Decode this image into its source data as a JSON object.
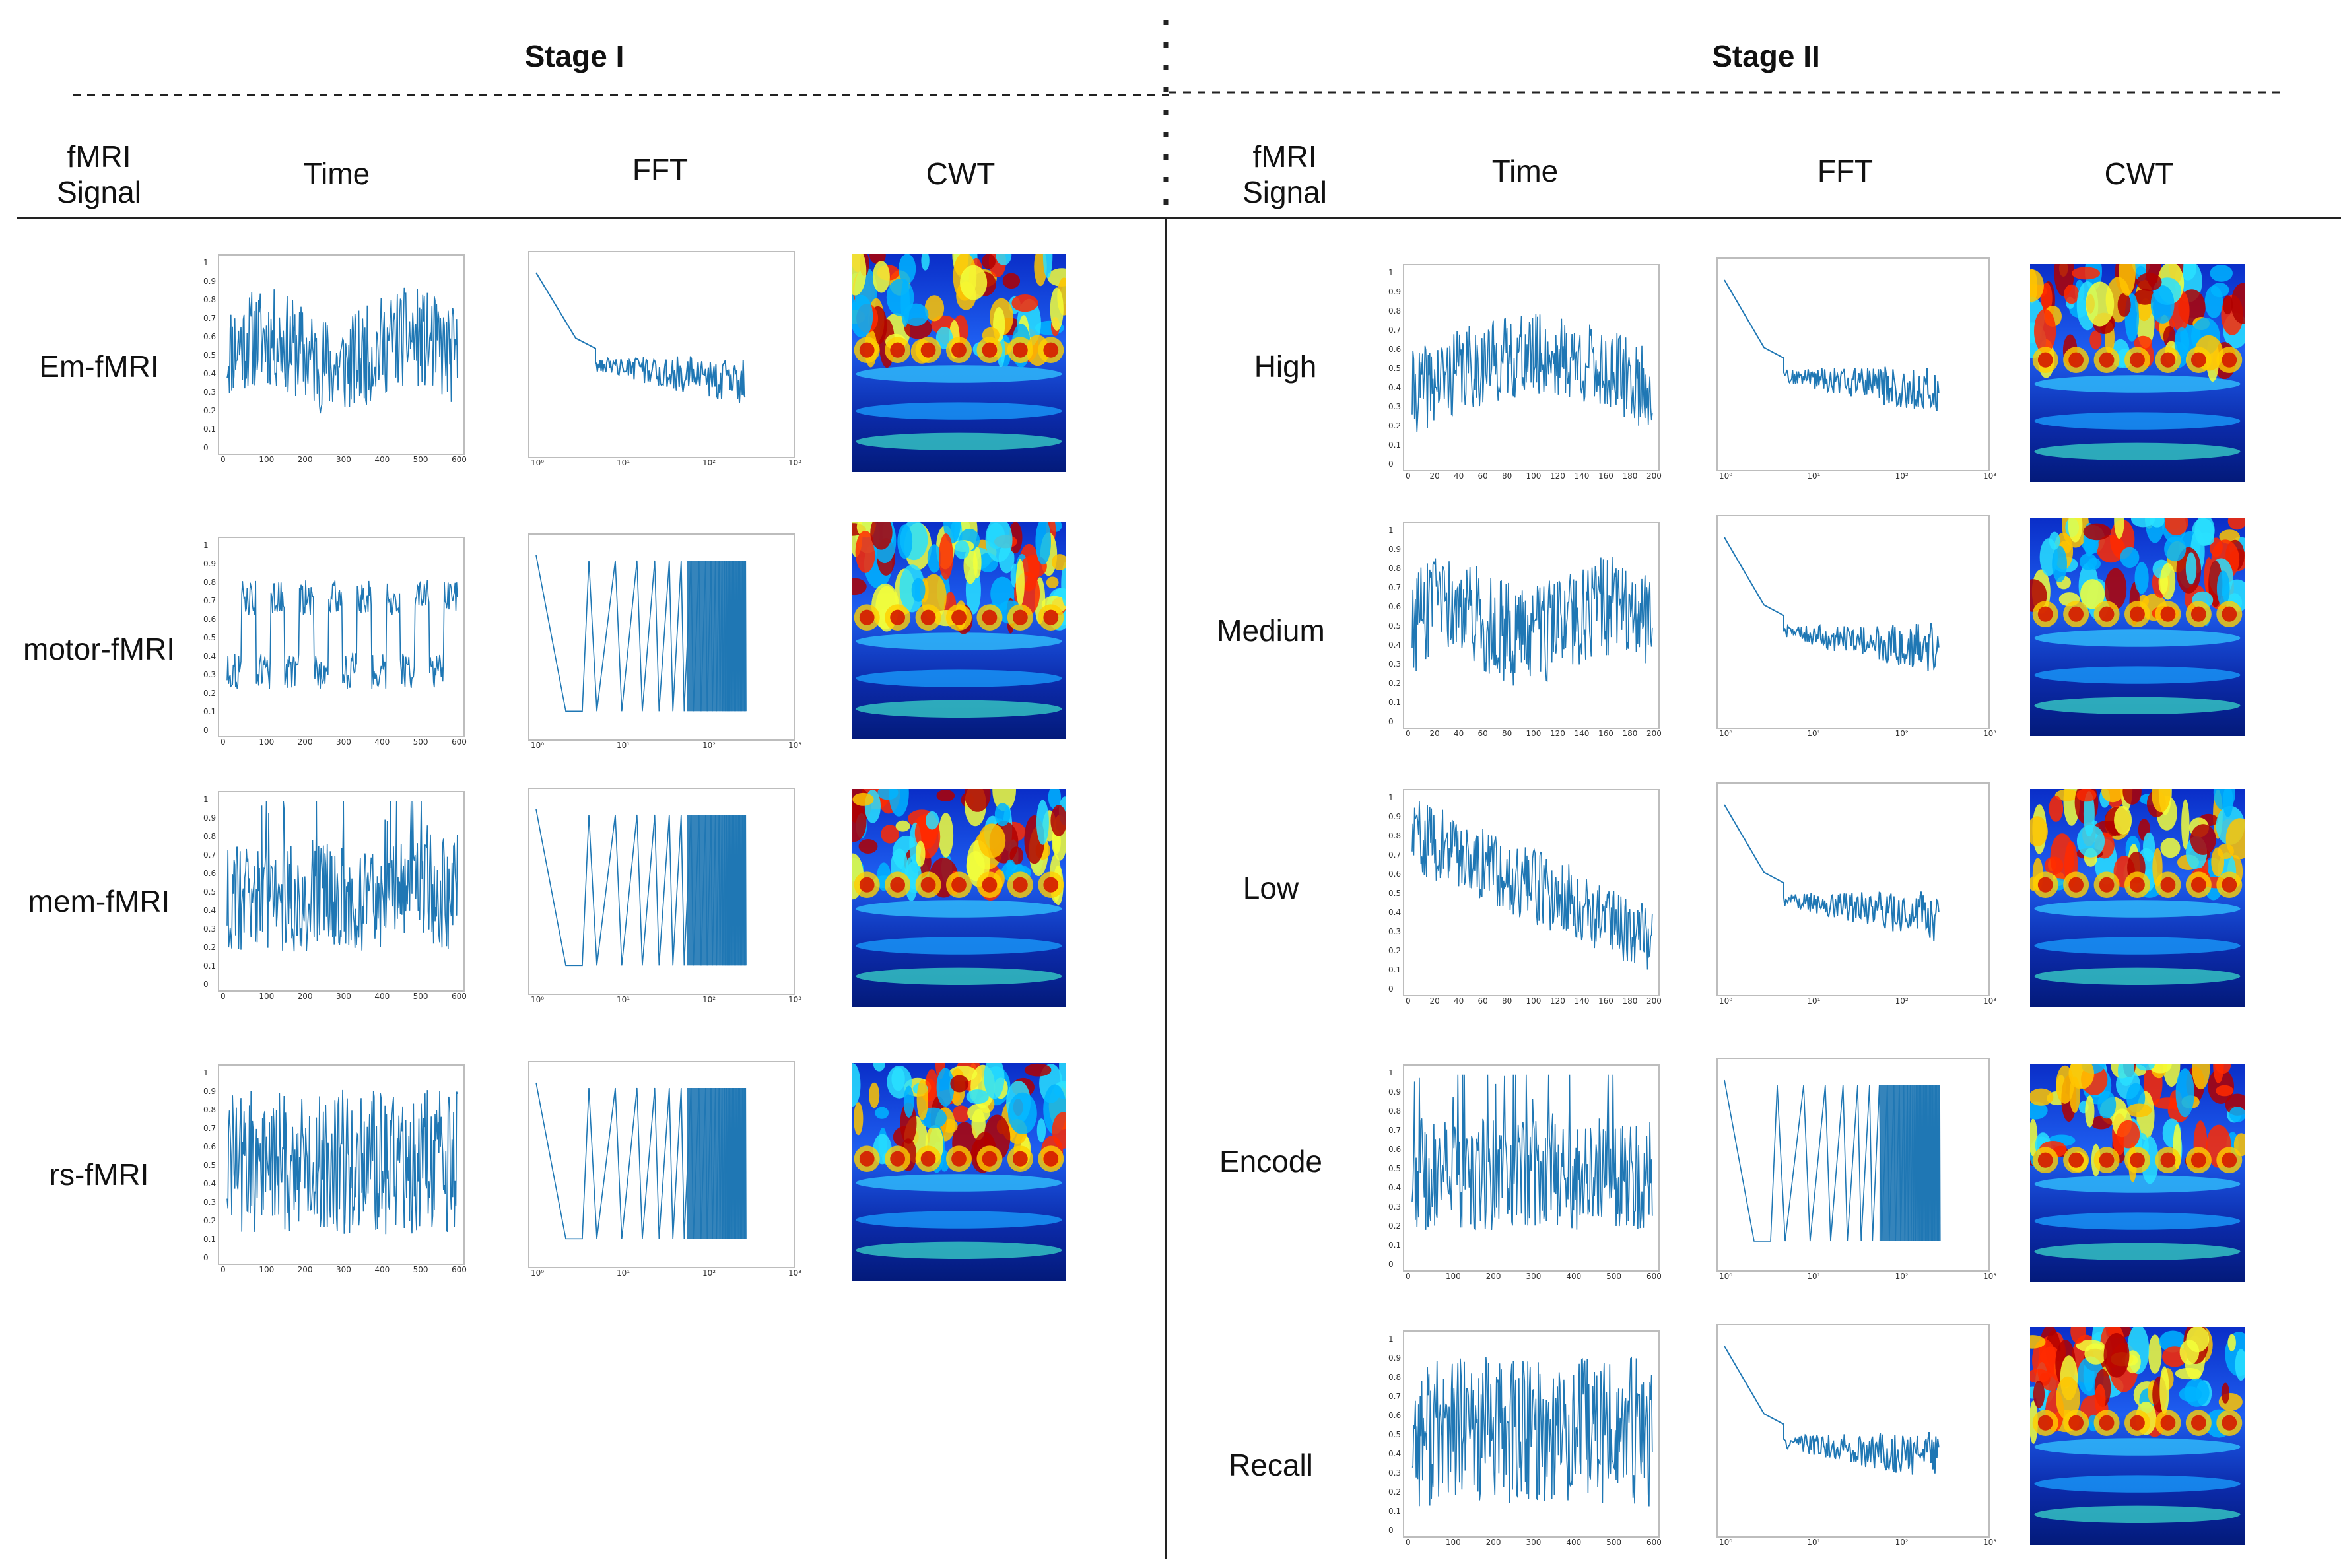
{
  "stage1": {
    "title": "Stage I"
  },
  "stage2": {
    "title": "Stage II"
  },
  "headers": {
    "signal": "fMRI",
    "signal2": "Signal",
    "time": "Time",
    "fft": "FFT",
    "cwt": "CWT"
  },
  "stage1_rows": [
    "Em-fMRI",
    "motor-fMRI",
    "mem-fMRI",
    "rs-fMRI"
  ],
  "stage2_rows": [
    "High",
    "Medium",
    "Low",
    "Encode",
    "Recall"
  ],
  "ticks": {
    "time600": [
      "0",
      "100",
      "200",
      "300",
      "400",
      "500",
      "600"
    ],
    "time200": [
      "0",
      "20",
      "40",
      "60",
      "80",
      "100",
      "120",
      "140",
      "160",
      "180",
      "200"
    ],
    "y01": [
      "0",
      "0.1",
      "0.2",
      "0.3",
      "0.4",
      "0.5",
      "0.6",
      "0.7",
      "0.8",
      "0.9",
      "1"
    ],
    "fftx": [
      "10⁰",
      "10¹",
      "10²",
      "10³"
    ]
  },
  "colors": {
    "line": "#1f77b4",
    "axis": "#bdbdbd",
    "text": "#111111"
  }
}
